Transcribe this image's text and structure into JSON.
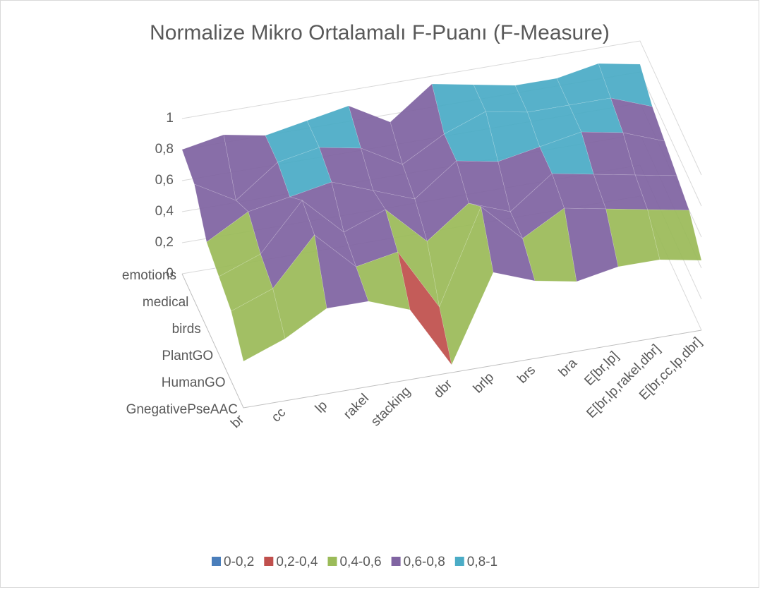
{
  "chart_data": {
    "type": "surface3d",
    "title": "Normalize Mikro Ortalamalı F-Puanı (F-Measure)",
    "categories": [
      "br",
      "cc",
      "lp",
      "rakel",
      "stacking",
      "dbr",
      "brlp",
      "brs",
      "bra",
      "E[br,lp]",
      "E[br,lp,rakel,dbr]",
      "E[br,cc,lp,dbr]"
    ],
    "depth_categories": [
      "emotions",
      "medical",
      "birds",
      "PlantGO",
      "HumanGO",
      "GnegativePseAAC"
    ],
    "values": [
      [
        0.8,
        0.85,
        0.8,
        0.85,
        0.9,
        0.75,
        0.95,
        0.9,
        0.85,
        0.85,
        0.9,
        0.85
      ],
      [
        0.75,
        0.6,
        0.8,
        0.85,
        0.8,
        0.65,
        0.8,
        0.9,
        0.85,
        0.85,
        0.85,
        0.75
      ],
      [
        0.55,
        0.7,
        0.75,
        0.8,
        0.7,
        0.6,
        0.8,
        0.75,
        0.8,
        0.85,
        0.8,
        0.7
      ],
      [
        0.5,
        0.6,
        0.9,
        0.65,
        0.75,
        0.5,
        0.7,
        0.6,
        0.8,
        0.75,
        0.7,
        0.65
      ],
      [
        0.45,
        0.55,
        0.85,
        0.6,
        0.65,
        0.25,
        0.85,
        0.6,
        0.75,
        0.7,
        0.65,
        0.6
      ],
      [
        0.3,
        0.4,
        0.55,
        0.55,
        0.45,
        0.05,
        0.6,
        0.5,
        0.45,
        0.5,
        0.5,
        0.45
      ]
    ],
    "ylim": [
      0,
      1
    ],
    "yticks": [
      0,
      {
        "value": 0.2,
        "label": "0,2"
      },
      {
        "value": 0.4,
        "label": "0,4"
      },
      {
        "value": 0.6,
        "label": "0,6"
      },
      {
        "value": 0.8,
        "label": "0,8"
      },
      1
    ],
    "legend": [
      {
        "name": "0-0,2",
        "color": "#4a7ebb"
      },
      {
        "name": "0,2-0,4",
        "color": "#c0504d"
      },
      {
        "name": "0,4-0,6",
        "color": "#9bbb59"
      },
      {
        "name": "0,6-0,8",
        "color": "#8064a2"
      },
      {
        "name": "0,8-1",
        "color": "#4bacc6"
      }
    ]
  }
}
